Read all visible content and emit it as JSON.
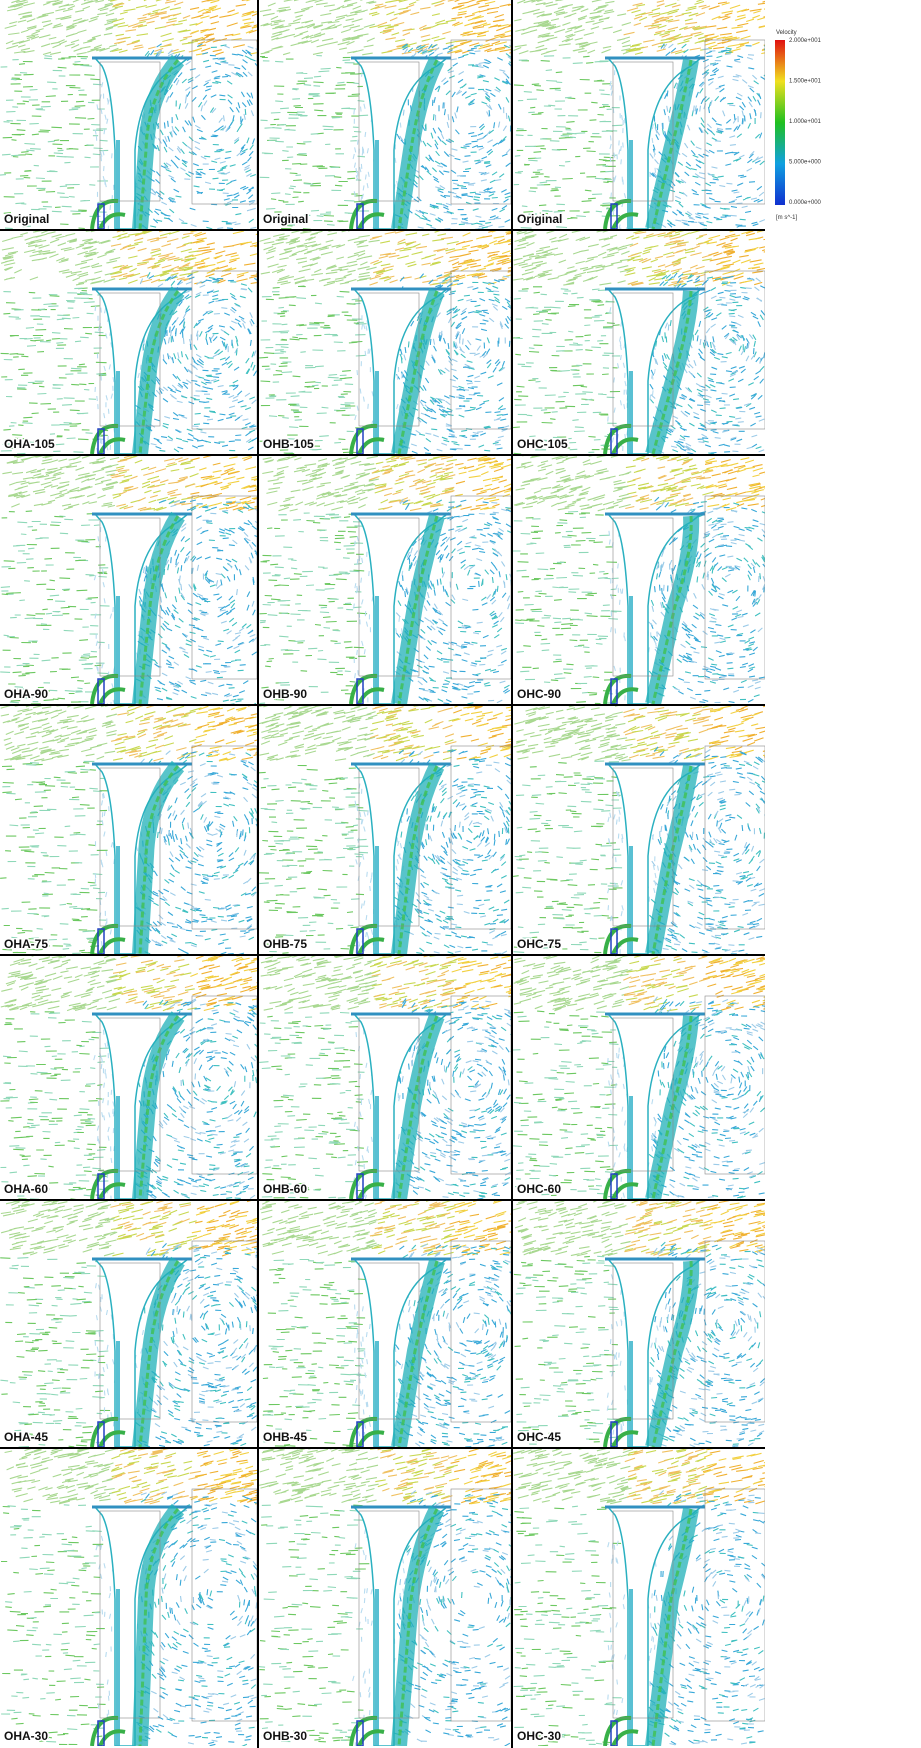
{
  "rows": [
    [
      "Original",
      "Original",
      "Original"
    ],
    [
      "OHA-105",
      "OHB-105",
      "OHC-105"
    ],
    [
      "OHA-90",
      "OHB-90",
      "OHC-90"
    ],
    [
      "OHA-75",
      "OHB-75",
      "OHC-75"
    ],
    [
      "OHA-60",
      "OHB-60",
      "OHC-60"
    ],
    [
      "OHA-45",
      "OHB-45",
      "OHC-45"
    ],
    [
      "OHA-30",
      "OHB-30",
      "OHC-30"
    ]
  ],
  "legend": {
    "title": "Velocity",
    "ticks": [
      "2.000e+001",
      "1.500e+001",
      "1.000e+001",
      "5.000e+000",
      "0.000e+000"
    ],
    "unit": "[m s^-1]"
  }
}
